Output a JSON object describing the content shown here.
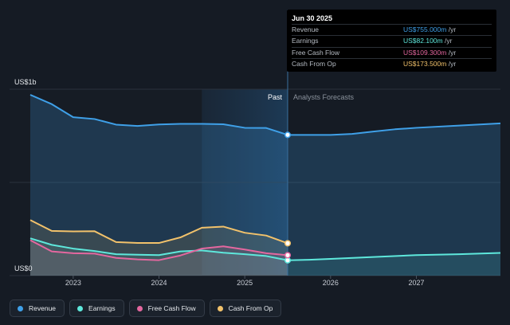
{
  "tooltip": {
    "date": "Jun 30 2025",
    "rows": [
      {
        "name": "Revenue",
        "value": "US$755.000m",
        "unit": "/yr",
        "color": "#3fa0e8"
      },
      {
        "name": "Earnings",
        "value": "US$82.100m",
        "unit": "/yr",
        "color": "#5ee8dc"
      },
      {
        "name": "Free Cash Flow",
        "value": "US$109.300m",
        "unit": "/yr",
        "color": "#e4679f"
      },
      {
        "name": "Cash From Op",
        "value": "US$173.500m",
        "unit": "/yr",
        "color": "#f2c26b"
      }
    ]
  },
  "legend": [
    {
      "label": "Revenue",
      "color": "#3fa0e8"
    },
    {
      "label": "Earnings",
      "color": "#5ee8dc"
    },
    {
      "label": "Free Cash Flow",
      "color": "#e4679f"
    },
    {
      "label": "Cash From Op",
      "color": "#f2c26b"
    }
  ],
  "chart_data": {
    "type": "area",
    "y_label_top": "US$1b",
    "y_label_bottom": "US$0",
    "ylim": [
      0,
      1000
    ],
    "xlim": [
      2022.5,
      2027.98
    ],
    "x_ticks": [
      2023,
      2024,
      2025,
      2026,
      2027
    ],
    "x_tick_labels": [
      "2023",
      "2024",
      "2025",
      "2026",
      "2027"
    ],
    "past_label": "Past",
    "forecast_label": "Analysts Forecasts",
    "divider_x": 2025.5,
    "highlight_start_x": 2024.5,
    "series": [
      {
        "name": "Revenue",
        "color": "#3fa0e8",
        "points": [
          [
            2022.5,
            970
          ],
          [
            2022.75,
            920
          ],
          [
            2023.0,
            850
          ],
          [
            2023.25,
            840
          ],
          [
            2023.5,
            810
          ],
          [
            2023.75,
            803
          ],
          [
            2024.0,
            811
          ],
          [
            2024.25,
            814
          ],
          [
            2024.5,
            814
          ],
          [
            2024.75,
            812
          ],
          [
            2025.0,
            793
          ],
          [
            2025.25,
            792
          ],
          [
            2025.5,
            755
          ],
          [
            2025.75,
            755
          ],
          [
            2026.0,
            755
          ],
          [
            2026.25,
            760
          ],
          [
            2026.5,
            773
          ],
          [
            2026.75,
            785
          ],
          [
            2027.0,
            793
          ],
          [
            2027.5,
            805
          ],
          [
            2027.98,
            817
          ]
        ],
        "forecast_from": 2025.5
      },
      {
        "name": "Earnings",
        "color": "#5ee8dc",
        "points": [
          [
            2022.5,
            200
          ],
          [
            2022.75,
            165
          ],
          [
            2023.0,
            145
          ],
          [
            2023.25,
            132
          ],
          [
            2023.5,
            115
          ],
          [
            2023.75,
            112
          ],
          [
            2024.0,
            110
          ],
          [
            2024.25,
            130
          ],
          [
            2024.5,
            135
          ],
          [
            2024.75,
            123
          ],
          [
            2025.0,
            115
          ],
          [
            2025.25,
            105
          ],
          [
            2025.5,
            82.1
          ],
          [
            2025.75,
            85
          ],
          [
            2026.0,
            90
          ],
          [
            2026.5,
            100
          ],
          [
            2027.0,
            110
          ],
          [
            2027.5,
            115
          ],
          [
            2027.98,
            122
          ]
        ],
        "forecast_from": 2025.5
      },
      {
        "name": "Free Cash Flow",
        "color": "#e4679f",
        "points": [
          [
            2022.5,
            190
          ],
          [
            2022.75,
            130
          ],
          [
            2023.0,
            120
          ],
          [
            2023.25,
            118
          ],
          [
            2023.5,
            95
          ],
          [
            2023.75,
            87
          ],
          [
            2024.0,
            83
          ],
          [
            2024.25,
            108
          ],
          [
            2024.5,
            145
          ],
          [
            2024.75,
            157
          ],
          [
            2025.0,
            140
          ],
          [
            2025.25,
            120
          ],
          [
            2025.5,
            109.3
          ]
        ]
      },
      {
        "name": "Cash From Op",
        "color": "#f2c26b",
        "points": [
          [
            2022.5,
            298
          ],
          [
            2022.75,
            240
          ],
          [
            2023.0,
            237
          ],
          [
            2023.25,
            238
          ],
          [
            2023.5,
            180
          ],
          [
            2023.75,
            175
          ],
          [
            2024.0,
            175
          ],
          [
            2024.25,
            205
          ],
          [
            2024.5,
            257
          ],
          [
            2024.75,
            263
          ],
          [
            2025.0,
            230
          ],
          [
            2025.25,
            215
          ],
          [
            2025.5,
            173.5
          ]
        ]
      }
    ]
  }
}
